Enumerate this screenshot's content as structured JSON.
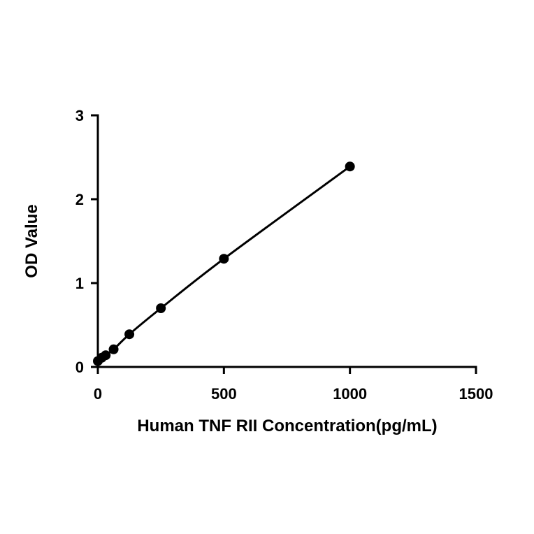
{
  "chart_data": {
    "type": "scatter",
    "title": "",
    "xlabel": "Human TNF RII Concentration(pg/mL)",
    "ylabel": "OD Value",
    "xlim": [
      0,
      1500
    ],
    "ylim": [
      0,
      3
    ],
    "xticks": [
      0,
      500,
      1000,
      1500
    ],
    "yticks": [
      0,
      1,
      2,
      3
    ],
    "xtick_labels": [
      "0",
      "500",
      "1000",
      "1500"
    ],
    "ytick_labels": [
      "0",
      "1",
      "2",
      "3"
    ],
    "grid": false,
    "legend": "none",
    "series": [
      {
        "x": [
          0,
          15.6,
          31.25,
          62.5,
          125,
          250,
          500,
          1000
        ],
        "y": [
          0.07,
          0.11,
          0.14,
          0.21,
          0.39,
          0.7,
          1.29,
          2.39
        ],
        "marker": "circle",
        "line": "smooth-fit",
        "color": "#000000"
      }
    ]
  }
}
